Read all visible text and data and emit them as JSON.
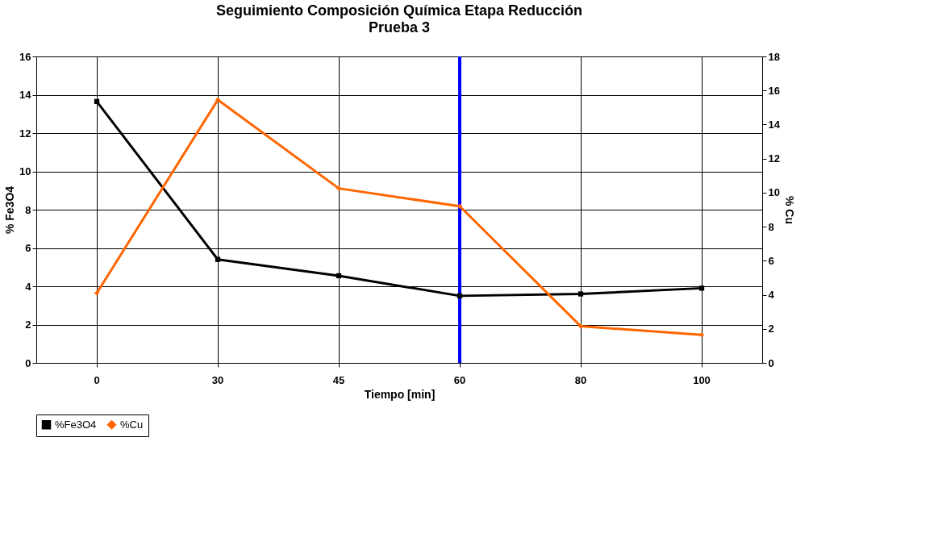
{
  "chart_data": {
    "type": "line",
    "title": "Seguimiento Composición Química Etapa Reducción",
    "subtitle": "Prueba 3",
    "xlabel": "Tiempo [min]",
    "ylabel": "% Fe3O4",
    "y2label": "% Cu",
    "categories": [
      "0",
      "30",
      "45",
      "60",
      "80",
      "100"
    ],
    "series": [
      {
        "name": "%Fe3O4",
        "color": "#000000",
        "marker": "square",
        "values": [
          13.65,
          5.4,
          4.55,
          3.5,
          3.6,
          3.9
        ]
      },
      {
        "name": "%Cu",
        "color": "#ff6600",
        "marker": "diamond",
        "axis": "y2",
        "values": [
          4.1,
          15.45,
          10.25,
          9.2,
          2.15,
          1.65
        ]
      }
    ],
    "ylim": [
      0,
      16
    ],
    "yticks": [
      0,
      2,
      4,
      6,
      8,
      10,
      12,
      14,
      16
    ],
    "y2lim": [
      0,
      18
    ],
    "y2ticks": [
      0,
      2,
      4,
      6,
      8,
      10,
      12,
      14,
      16,
      18
    ],
    "ref_lines": [
      {
        "axis": "x",
        "value": "60",
        "color": "#0000ff"
      }
    ],
    "grid": true,
    "legend": "bottom",
    "line_style": "solid"
  }
}
